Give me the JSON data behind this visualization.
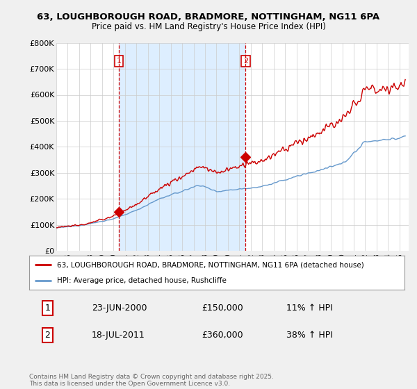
{
  "title_line1": "63, LOUGHBOROUGH ROAD, BRADMORE, NOTTINGHAM, NG11 6PA",
  "title_line2": "Price paid vs. HM Land Registry's House Price Index (HPI)",
  "bg_color": "#f0f0f0",
  "plot_bg_color": "#ffffff",
  "hpi_color": "#6699cc",
  "price_color": "#cc0000",
  "vline_color": "#cc0000",
  "shade_color": "#ddeeff",
  "ylim": [
    0,
    800000
  ],
  "yticks": [
    0,
    100000,
    200000,
    300000,
    400000,
    500000,
    600000,
    700000,
    800000
  ],
  "ytick_labels": [
    "£0",
    "£100K",
    "£200K",
    "£300K",
    "£400K",
    "£500K",
    "£600K",
    "£700K",
    "£800K"
  ],
  "sale1": {
    "date_num": 2000.48,
    "price": 150000,
    "label": "1"
  },
  "sale2": {
    "date_num": 2011.55,
    "price": 360000,
    "label": "2"
  },
  "legend_label1": "63, LOUGHBOROUGH ROAD, BRADMORE, NOTTINGHAM, NG11 6PA (detached house)",
  "legend_label2": "HPI: Average price, detached house, Rushcliffe",
  "footer": "Contains HM Land Registry data © Crown copyright and database right 2025.\nThis data is licensed under the Open Government Licence v3.0.",
  "table_row1": [
    "1",
    "23-JUN-2000",
    "£150,000",
    "11% ↑ HPI"
  ],
  "table_row2": [
    "2",
    "18-JUL-2011",
    "£360,000",
    "38% ↑ HPI"
  ]
}
